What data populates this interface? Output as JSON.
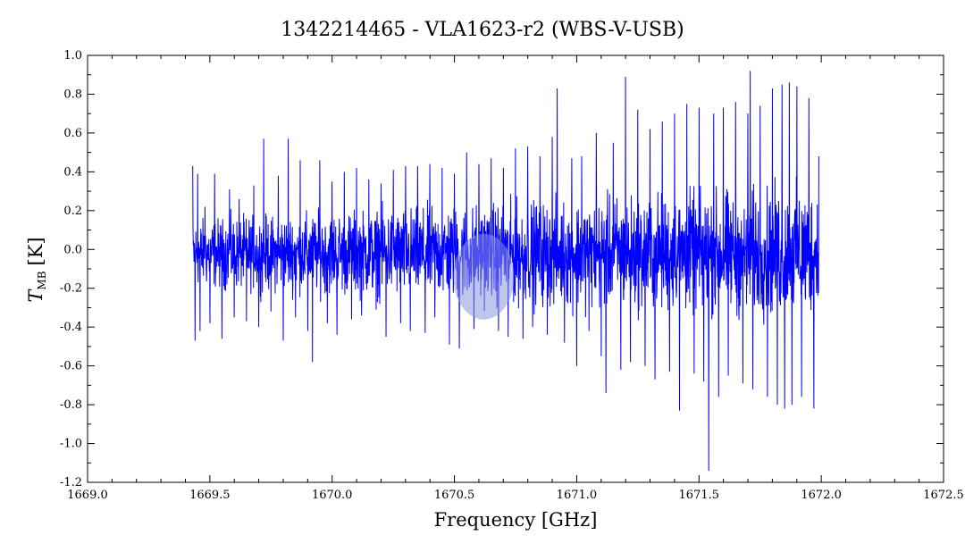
{
  "chart_data": {
    "type": "line",
    "title": "1342214465 - VLA1623-r2 (WBS-V-USB)",
    "xlabel": "Frequency [GHz]",
    "ylabel_main": "T",
    "ylabel_sub": "MB",
    "ylabel_unit": "[K]",
    "xlim": [
      1669.0,
      1672.5
    ],
    "ylim": [
      -1.2,
      1.0
    ],
    "x_ticks": [
      1669.0,
      1669.5,
      1670.0,
      1670.5,
      1671.0,
      1671.5,
      1672.0,
      1672.5
    ],
    "x_tick_labels": [
      "1669.0",
      "1669.5",
      "1670.0",
      "1670.5",
      "1671.0",
      "1671.5",
      "1672.0",
      "1672.5"
    ],
    "y_ticks": [
      1.0,
      0.8,
      0.6,
      0.4,
      0.2,
      0.0,
      -0.2,
      -0.4,
      -0.6,
      -0.8,
      -1.0,
      -1.2
    ],
    "y_tick_labels": [
      "1.0",
      "0.8",
      "0.6",
      "0.4",
      "0.2",
      "0.0",
      "-0.2",
      "-0.4",
      "-0.6",
      "-0.8",
      "-1.0",
      "-1.2"
    ],
    "series_color": "#0000ff",
    "marker_color": "#8c96dc",
    "marker": {
      "x": 1670.62,
      "y": -0.14
    },
    "series": [
      {
        "x": [
          1669.43,
          1669.44,
          1669.45,
          1669.46,
          1669.48,
          1669.5,
          1669.52,
          1669.55,
          1669.58,
          1669.6,
          1669.62,
          1669.65,
          1669.68,
          1669.7,
          1669.72,
          1669.75,
          1669.78,
          1669.8,
          1669.82,
          1669.85,
          1669.87,
          1669.9,
          1669.92,
          1669.95,
          1669.98,
          1670.0,
          1670.02,
          1670.05,
          1670.08,
          1670.1,
          1670.12,
          1670.15,
          1670.18,
          1670.2,
          1670.22,
          1670.25,
          1670.28,
          1670.3,
          1670.32,
          1670.35,
          1670.38,
          1670.4,
          1670.42,
          1670.45,
          1670.48,
          1670.5,
          1670.52,
          1670.55,
          1670.58,
          1670.6,
          1670.62,
          1670.65,
          1670.68,
          1670.7,
          1670.72,
          1670.75,
          1670.78,
          1670.8,
          1670.82,
          1670.85,
          1670.88,
          1670.9,
          1670.92,
          1670.95,
          1670.98,
          1671.0,
          1671.02,
          1671.05,
          1671.08,
          1671.1,
          1671.12,
          1671.15,
          1671.18,
          1671.2,
          1671.22,
          1671.25,
          1671.28,
          1671.3,
          1671.32,
          1671.35,
          1671.38,
          1671.4,
          1671.42,
          1671.45,
          1671.48,
          1671.5,
          1671.52,
          1671.54,
          1671.56,
          1671.58,
          1671.6,
          1671.62,
          1671.65,
          1671.68,
          1671.7,
          1671.71,
          1671.72,
          1671.75,
          1671.78,
          1671.8,
          1671.82,
          1671.84,
          1671.85,
          1671.87,
          1671.88,
          1671.9,
          1671.92,
          1671.95,
          1671.97,
          1671.99
        ],
        "values": [
          0.43,
          -0.47,
          0.39,
          -0.42,
          0.22,
          -0.38,
          0.39,
          -0.46,
          0.31,
          -0.35,
          0.26,
          -0.37,
          0.33,
          -0.4,
          0.57,
          -0.32,
          0.38,
          -0.47,
          0.57,
          -0.35,
          0.46,
          -0.42,
          -0.58,
          0.46,
          -0.38,
          0.35,
          -0.44,
          0.4,
          -0.36,
          0.42,
          -0.34,
          0.36,
          -0.31,
          0.34,
          -0.45,
          0.41,
          -0.38,
          0.43,
          -0.42,
          0.43,
          -0.43,
          0.44,
          -0.35,
          0.42,
          -0.49,
          0.39,
          -0.51,
          0.5,
          -0.41,
          0.44,
          0.12,
          0.47,
          -0.42,
          0.42,
          -0.45,
          0.52,
          -0.46,
          0.53,
          -0.4,
          0.48,
          -0.44,
          0.58,
          0.83,
          -0.48,
          0.47,
          -0.6,
          0.48,
          -0.42,
          0.6,
          -0.55,
          -0.74,
          0.55,
          -0.62,
          0.89,
          -0.58,
          0.72,
          -0.6,
          0.62,
          -0.67,
          0.66,
          -0.63,
          0.7,
          -0.83,
          0.75,
          -0.64,
          0.73,
          -0.68,
          -1.14,
          0.7,
          -0.76,
          0.73,
          -0.65,
          0.76,
          -0.69,
          0.7,
          0.92,
          -0.72,
          0.74,
          -0.76,
          0.83,
          -0.8,
          0.85,
          -0.82,
          0.86,
          -0.8,
          0.84,
          -0.76,
          0.78,
          -0.82,
          0.48
        ]
      }
    ]
  }
}
